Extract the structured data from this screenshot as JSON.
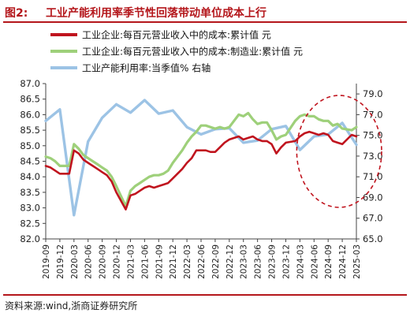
{
  "header": {
    "figure_number": "图2:",
    "title": "工业产能利用率季节性回落带动单位成本上行"
  },
  "footer": {
    "source": "资料来源:wind,浙商证券研究所"
  },
  "colors": {
    "brand_red": "#b4161b",
    "series_red": "#c0141e",
    "series_green": "#9ed07a",
    "series_blue": "#9cc3e5",
    "ellipse": "#c0141e"
  },
  "chart_data": {
    "type": "line",
    "title": "",
    "categories": [
      "2019-09",
      "2019-10",
      "2019-11",
      "2019-12",
      "2020-01",
      "2020-02",
      "2020-03",
      "2020-04",
      "2020-05",
      "2020-06",
      "2020-07",
      "2020-08",
      "2020-09",
      "2020-10",
      "2020-11",
      "2020-12",
      "2021-01",
      "2021-02",
      "2021-03",
      "2021-04",
      "2021-05",
      "2021-06",
      "2021-07",
      "2021-08",
      "2021-09",
      "2021-10",
      "2021-11",
      "2021-12",
      "2022-01",
      "2022-02",
      "2022-03",
      "2022-04",
      "2022-05",
      "2022-06",
      "2022-07",
      "2022-08",
      "2022-09",
      "2022-10",
      "2022-11",
      "2022-12",
      "2023-01",
      "2023-02",
      "2023-03",
      "2023-04",
      "2023-05",
      "2023-06",
      "2023-07",
      "2023-08",
      "2023-09",
      "2023-10",
      "2023-11",
      "2023-12",
      "2024-01",
      "2024-02",
      "2024-03",
      "2024-04",
      "2024-05",
      "2024-06",
      "2024-07",
      "2024-08",
      "2024-09",
      "2024-10",
      "2024-11",
      "2024-12",
      "2025-01",
      "2025-02",
      "2025-03"
    ],
    "x_tick_labels": [
      "2019-09",
      "2019-12",
      "2020-03",
      "2020-06",
      "2020-09",
      "2020-12",
      "2021-03",
      "2021-06",
      "2021-09",
      "2021-12",
      "2022-03",
      "2022-06",
      "2022-09",
      "2022-12",
      "2023-03",
      "2023-06",
      "2023-09",
      "2023-12",
      "2024-03",
      "2024-06",
      "2024-09",
      "2024-12",
      "2025-03"
    ],
    "series": [
      {
        "name": "工业企业:每百元营业收入中的成本:累计值 元",
        "axis": "left",
        "x": [
          "2019-09",
          "2019-10",
          "2019-11",
          "2019-12",
          "2020-02",
          "2020-03",
          "2020-04",
          "2020-05",
          "2020-06",
          "2020-07",
          "2020-08",
          "2020-09",
          "2020-10",
          "2020-11",
          "2020-12",
          "2021-02",
          "2021-03",
          "2021-04",
          "2021-05",
          "2021-06",
          "2021-07",
          "2021-08",
          "2021-09",
          "2021-10",
          "2021-11",
          "2021-12",
          "2022-02",
          "2022-03",
          "2022-04",
          "2022-05",
          "2022-06",
          "2022-07",
          "2022-08",
          "2022-09",
          "2022-10",
          "2022-11",
          "2022-12",
          "2023-02",
          "2023-03",
          "2023-04",
          "2023-05",
          "2023-06",
          "2023-07",
          "2023-08",
          "2023-09",
          "2023-10",
          "2023-11",
          "2023-12",
          "2024-02",
          "2024-03",
          "2024-04",
          "2024-05",
          "2024-06",
          "2024-07",
          "2024-08",
          "2024-09",
          "2024-10",
          "2024-11",
          "2024-12",
          "2025-02",
          "2025-03"
        ],
        "values": [
          84.35,
          84.3,
          84.2,
          84.1,
          84.1,
          84.85,
          84.75,
          84.55,
          84.45,
          84.35,
          84.25,
          84.15,
          84.05,
          83.85,
          83.5,
          82.95,
          83.4,
          83.45,
          83.55,
          83.65,
          83.7,
          83.65,
          83.7,
          83.75,
          83.8,
          83.95,
          84.25,
          84.45,
          84.6,
          84.85,
          84.85,
          84.85,
          84.8,
          84.8,
          84.95,
          85.1,
          85.2,
          85.3,
          85.2,
          85.25,
          85.3,
          85.2,
          85.15,
          85.15,
          85.05,
          84.75,
          84.95,
          85.1,
          85.15,
          85.3,
          85.4,
          85.45,
          85.4,
          85.35,
          85.4,
          85.35,
          85.15,
          85.1,
          85.05,
          85.35,
          85.3
        ]
      },
      {
        "name": "工业企业:每百元营业收入中的成本:制造业:累计值 元",
        "axis": "left",
        "x": [
          "2019-09",
          "2019-10",
          "2019-11",
          "2019-12",
          "2020-02",
          "2020-03",
          "2020-04",
          "2020-05",
          "2020-06",
          "2020-07",
          "2020-08",
          "2020-09",
          "2020-10",
          "2020-11",
          "2020-12",
          "2021-02",
          "2021-03",
          "2021-04",
          "2021-05",
          "2021-06",
          "2021-07",
          "2021-08",
          "2021-09",
          "2021-10",
          "2021-11",
          "2021-12",
          "2022-02",
          "2022-03",
          "2022-04",
          "2022-05",
          "2022-06",
          "2022-07",
          "2022-08",
          "2022-09",
          "2022-10",
          "2022-11",
          "2022-12",
          "2023-02",
          "2023-03",
          "2023-04",
          "2023-05",
          "2023-06",
          "2023-07",
          "2023-08",
          "2023-09",
          "2023-10",
          "2023-11",
          "2023-12",
          "2024-02",
          "2024-03",
          "2024-04",
          "2024-05",
          "2024-06",
          "2024-07",
          "2024-08",
          "2024-09",
          "2024-10",
          "2024-11",
          "2024-12",
          "2025-02",
          "2025-03"
        ],
        "values": [
          84.65,
          84.6,
          84.5,
          84.35,
          84.35,
          85.05,
          84.9,
          84.7,
          84.6,
          84.5,
          84.4,
          84.3,
          84.2,
          84.0,
          83.7,
          83.05,
          83.55,
          83.7,
          83.8,
          83.9,
          84.0,
          84.05,
          84.05,
          84.1,
          84.2,
          84.45,
          84.85,
          85.1,
          85.3,
          85.45,
          85.65,
          85.65,
          85.6,
          85.55,
          85.6,
          85.55,
          85.6,
          86.0,
          85.95,
          86.05,
          85.85,
          85.7,
          85.75,
          85.75,
          85.5,
          85.2,
          85.3,
          85.35,
          85.8,
          85.95,
          86.0,
          85.95,
          85.95,
          85.85,
          85.8,
          85.8,
          85.65,
          85.7,
          85.55,
          85.5,
          85.6
        ]
      },
      {
        "name": "工业产能利用率:当季值% 右轴",
        "axis": "right",
        "x": [
          "2019-09",
          "2019-12",
          "2020-03",
          "2020-06",
          "2020-09",
          "2020-12",
          "2021-03",
          "2021-06",
          "2021-09",
          "2021-12",
          "2022-03",
          "2022-06",
          "2022-09",
          "2022-12",
          "2023-03",
          "2023-06",
          "2023-09",
          "2023-12",
          "2024-03",
          "2024-06",
          "2024-09",
          "2024-12",
          "2025-03"
        ],
        "values": [
          76.4,
          77.5,
          67.3,
          74.4,
          76.7,
          78.0,
          77.2,
          78.4,
          77.1,
          77.4,
          75.8,
          75.1,
          75.6,
          75.7,
          74.3,
          74.5,
          75.6,
          75.9,
          73.6,
          74.9,
          75.1,
          76.2,
          74.1
        ]
      }
    ],
    "y_left": {
      "min": 82.0,
      "max": 87.0,
      "ticks": [
        "82.0",
        "82.5",
        "83.0",
        "83.5",
        "84.0",
        "84.5",
        "85.0",
        "85.5",
        "86.0",
        "86.5",
        "87.0"
      ]
    },
    "y_right": {
      "min": 65.0,
      "max": 80.0,
      "ticks": [
        "65.0",
        "67.0",
        "69.0",
        "71.0",
        "73.0",
        "75.0",
        "77.0",
        "79.0"
      ]
    },
    "grid": false,
    "legend_position": "top-left",
    "annotation": {
      "shape": "dashed-ellipse",
      "covers": [
        "2024-03",
        "2025-03"
      ]
    }
  }
}
